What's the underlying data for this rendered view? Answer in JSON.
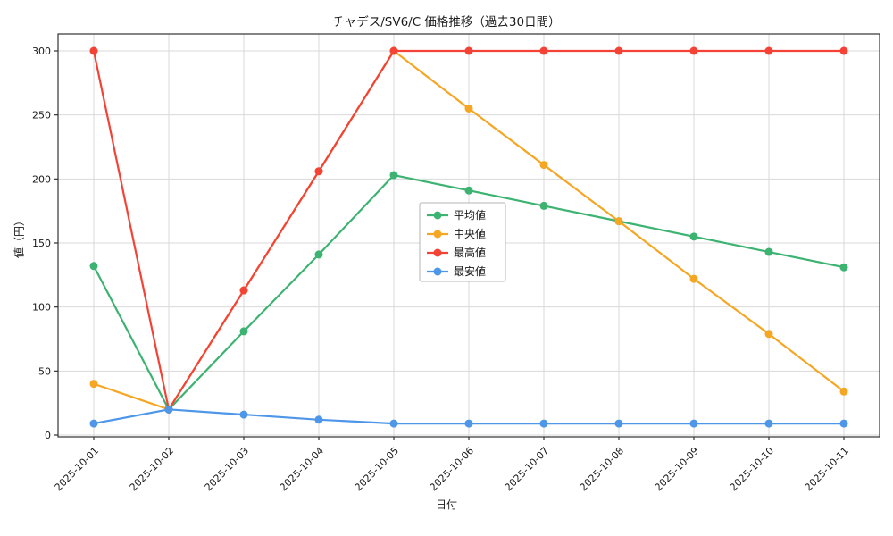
{
  "chart_data": {
    "type": "line",
    "title": "チャデス/SV6/C 価格推移（過去30日間）",
    "xlabel": "日付",
    "ylabel": "値（円）",
    "ylim": [
      0,
      300
    ],
    "yticks": [
      0,
      50,
      100,
      150,
      200,
      250,
      300
    ],
    "grid": true,
    "legend_position": "center",
    "categories": [
      "2025-10-01",
      "2025-10-02",
      "2025-10-03",
      "2025-10-04",
      "2025-10-05",
      "2025-10-06",
      "2025-10-07",
      "2025-10-08",
      "2025-10-09",
      "2025-10-10",
      "2025-10-11"
    ],
    "series": [
      {
        "id": "average",
        "name": "平均値",
        "color": "#3cb371",
        "values": [
          132,
          20,
          81,
          141,
          203,
          191,
          179,
          167,
          155,
          143,
          131
        ]
      },
      {
        "id": "median",
        "name": "中央値",
        "color": "#f5a623",
        "values": [
          40,
          20,
          113,
          206,
          300,
          255,
          211,
          167,
          122,
          79,
          34
        ]
      },
      {
        "id": "highest",
        "name": "最高値",
        "color": "#f44336",
        "values": [
          300,
          20,
          113,
          206,
          300,
          300,
          300,
          300,
          300,
          300,
          300
        ]
      },
      {
        "id": "lowest",
        "name": "最安値",
        "color": "#4d96e8",
        "values": [
          9,
          20,
          16,
          12,
          9,
          9,
          9,
          9,
          9,
          9,
          9
        ]
      }
    ],
    "colors": {
      "grid": "#d9d9d9",
      "spine": "#333333",
      "legend_border": "#b5b5b5",
      "background": "#ffffff"
    }
  }
}
